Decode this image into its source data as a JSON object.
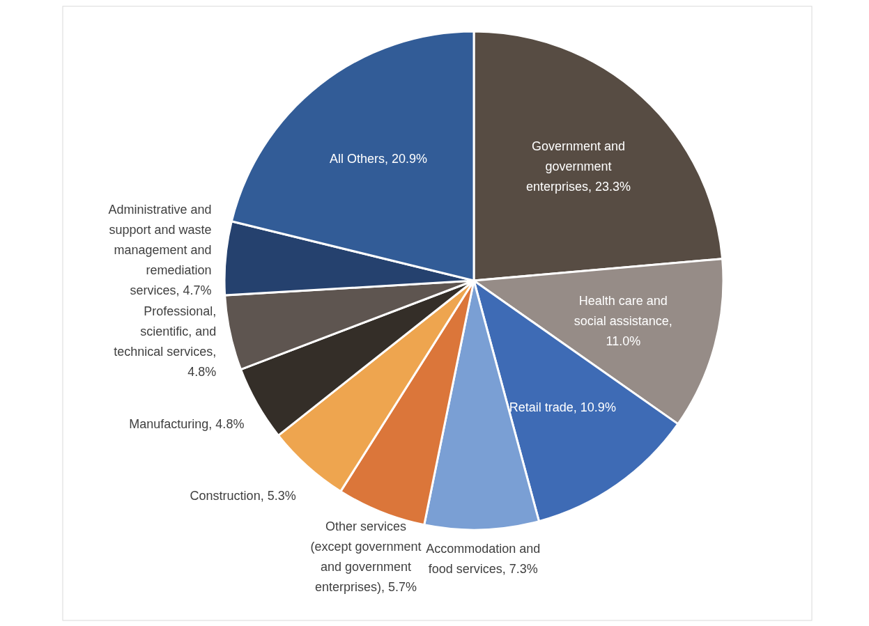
{
  "chart_data": {
    "type": "pie",
    "categories": [
      "Government and government enterprises",
      "Health care and social assistance",
      "Retail trade",
      "Accommodation and food services",
      "Other services (except government and government enterprises)",
      "Construction",
      "Manufacturing",
      "Professional, scientific, and technical services",
      "Administrative and support and waste management and remediation services",
      "All Others"
    ],
    "values": [
      23.3,
      11.0,
      10.9,
      7.3,
      5.7,
      5.3,
      4.8,
      4.8,
      4.7,
      20.9
    ],
    "value_labels": [
      ", 23.3%",
      ", 11.0%",
      ", 10.9%",
      ", 7.3%",
      ", 5.7%",
      ", 5.3%",
      ", 4.8%",
      ", 4.8%",
      ", 4.7%",
      ", 20.9%"
    ],
    "colors": [
      "#574c43",
      "#968c87",
      "#3e6bb5",
      "#7a9fd4",
      "#db763a",
      "#eea54f",
      "#342e28",
      "#5e5550",
      "#25416e",
      "#325c97"
    ]
  }
}
